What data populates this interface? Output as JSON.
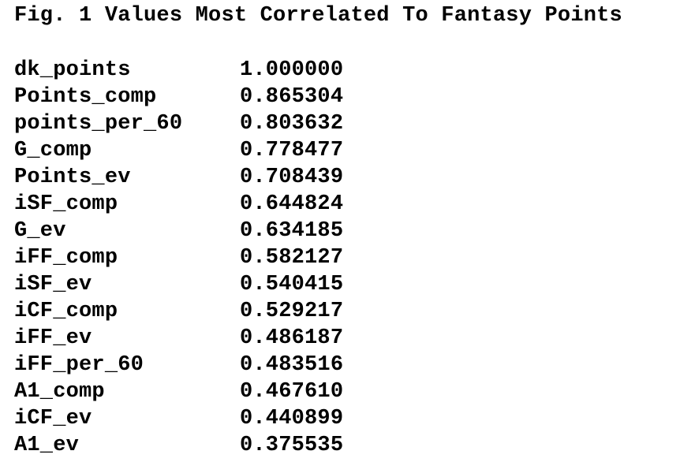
{
  "document": {
    "title": "Fig. 1 Values Most Correlated To Fantasy Points",
    "rows": [
      {
        "name": "dk_points",
        "value": "1.000000"
      },
      {
        "name": "Points_comp",
        "value": "0.865304"
      },
      {
        "name": "points_per_60",
        "value": "0.803632"
      },
      {
        "name": "G_comp",
        "value": "0.778477"
      },
      {
        "name": "Points_ev",
        "value": "0.708439"
      },
      {
        "name": "iSF_comp",
        "value": "0.644824"
      },
      {
        "name": "G_ev",
        "value": "0.634185"
      },
      {
        "name": "iFF_comp",
        "value": "0.582127"
      },
      {
        "name": "iSF_ev",
        "value": "0.540415"
      },
      {
        "name": "iCF_comp",
        "value": "0.529217"
      },
      {
        "name": "iFF_ev",
        "value": "0.486187"
      },
      {
        "name": "iFF_per_60",
        "value": "0.483516"
      },
      {
        "name": "A1_comp",
        "value": "0.467610"
      },
      {
        "name": "iCF_ev",
        "value": "0.440899"
      },
      {
        "name": "A1_ev",
        "value": "0.375535"
      }
    ]
  }
}
